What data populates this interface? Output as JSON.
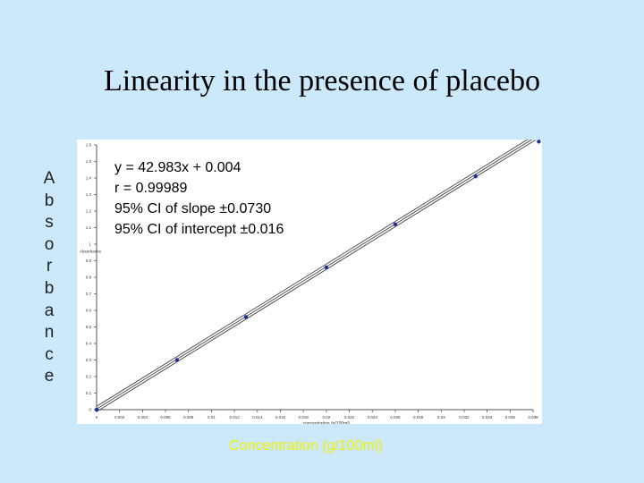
{
  "slide": {
    "title": "Linearity in the presence of placebo"
  },
  "annotations": {
    "equation": "y = 42.983x + 0.004",
    "r_value": "r = 0.99989",
    "ci_slope": "95% CI of slope ±0.0730",
    "ci_intercept": "95% CI of intercept ±0.016"
  },
  "colors": {
    "background": "#cbe9fb",
    "plot_background": "#ffffff",
    "points": "#1f2f9a",
    "lines": "#444444",
    "axis_title_x": "#f1f100"
  },
  "chart_data": {
    "type": "scatter",
    "title": "",
    "xlabel": "Concentration (g/100ml)",
    "ylabel": "Absorbance",
    "inner_xlabel": "concentration (g/100ml)",
    "inner_ylabel": "Absorbance",
    "xlim": [
      0,
      0.038
    ],
    "ylim": [
      0,
      1.6
    ],
    "x_tick_labels": [
      "0",
      "0.002",
      "0.004",
      "0.006",
      "0.008",
      "0.01",
      "0.012",
      "0.014",
      "0.016",
      "0.018",
      "0.02",
      "0.022",
      "0.024",
      "0.026",
      "0.028",
      "0.03",
      "0.032",
      "0.034",
      "0.036",
      "0.038"
    ],
    "y_tick_labels": [
      "0",
      "0.1",
      "0.2",
      "0.3",
      "0.4",
      "0.5",
      "0.6",
      "0.7",
      "0.8",
      "0.9",
      "1",
      "1.1",
      "1.2",
      "1.3",
      "1.4",
      "1.5",
      "1.6"
    ],
    "series": [
      {
        "x": [
          0,
          0.007,
          0.013,
          0.02,
          0.026,
          0.033,
          0.0385
        ],
        "y": [
          0,
          0.3,
          0.56,
          0.86,
          1.12,
          1.41,
          1.62
        ]
      }
    ],
    "fit": {
      "slope": 42.983,
      "intercept": 0.004
    },
    "confidence_band": {
      "upper_offset": 0.016,
      "lower_offset": -0.016
    },
    "grid": false,
    "legend": "none"
  }
}
